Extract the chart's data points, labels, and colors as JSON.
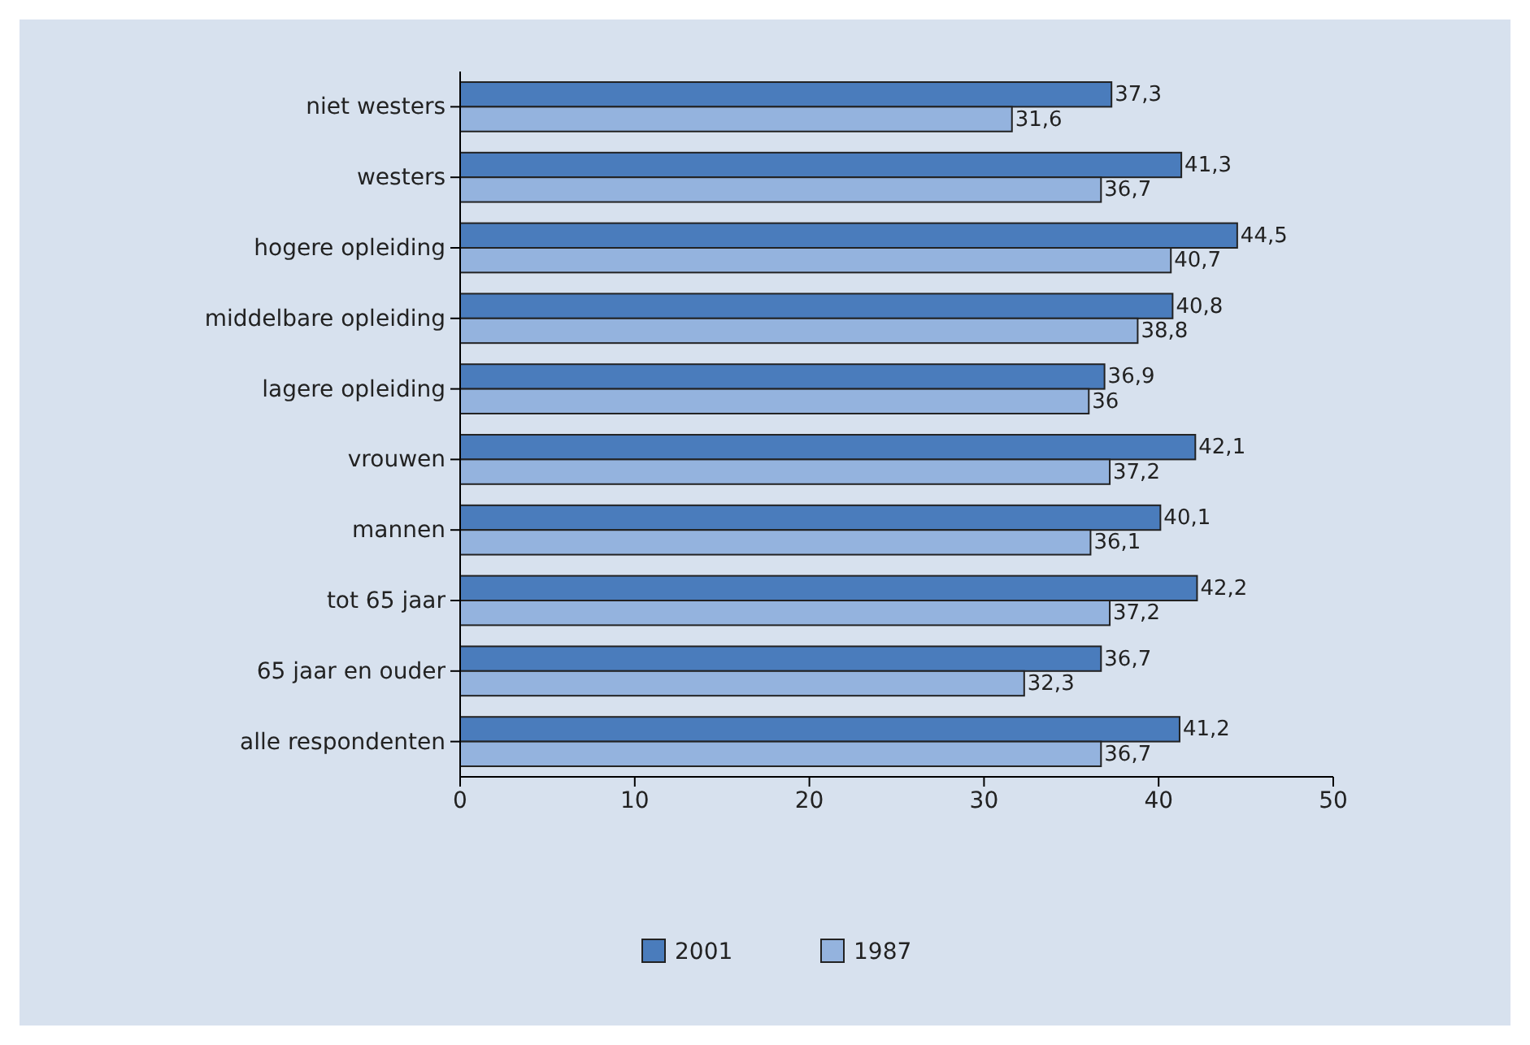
{
  "chart_data": {
    "type": "bar",
    "orientation": "horizontal",
    "categories": [
      "niet westers",
      "westers",
      "hogere opleiding",
      "middelbare opleiding",
      "lagere opleiding",
      "vrouwen",
      "mannen",
      "tot 65 jaar",
      "65 jaar en ouder",
      "alle respondenten"
    ],
    "series": [
      {
        "name": "2001",
        "color": "#4a7cbc",
        "values": [
          37.3,
          41.3,
          44.5,
          40.8,
          36.9,
          42.1,
          40.1,
          42.2,
          36.7,
          41.2
        ],
        "value_labels": [
          "37,3",
          "41,3",
          "44,5",
          "40,8",
          "36,9",
          "42,1",
          "40,1",
          "42,2",
          "36,7",
          "41,2"
        ]
      },
      {
        "name": "1987",
        "color": "#94b3de",
        "values": [
          31.6,
          36.7,
          40.7,
          38.8,
          36,
          37.2,
          36.1,
          37.2,
          32.3,
          36.7
        ],
        "value_labels": [
          "31,6",
          "36,7",
          "40,7",
          "38,8",
          "36",
          "37,2",
          "36,1",
          "37,2",
          "32,3",
          "36,7"
        ]
      }
    ],
    "xlim": [
      0,
      50
    ],
    "xticks": [
      0,
      10,
      20,
      30,
      40,
      50
    ],
    "grid": false,
    "legend": "bottom"
  }
}
